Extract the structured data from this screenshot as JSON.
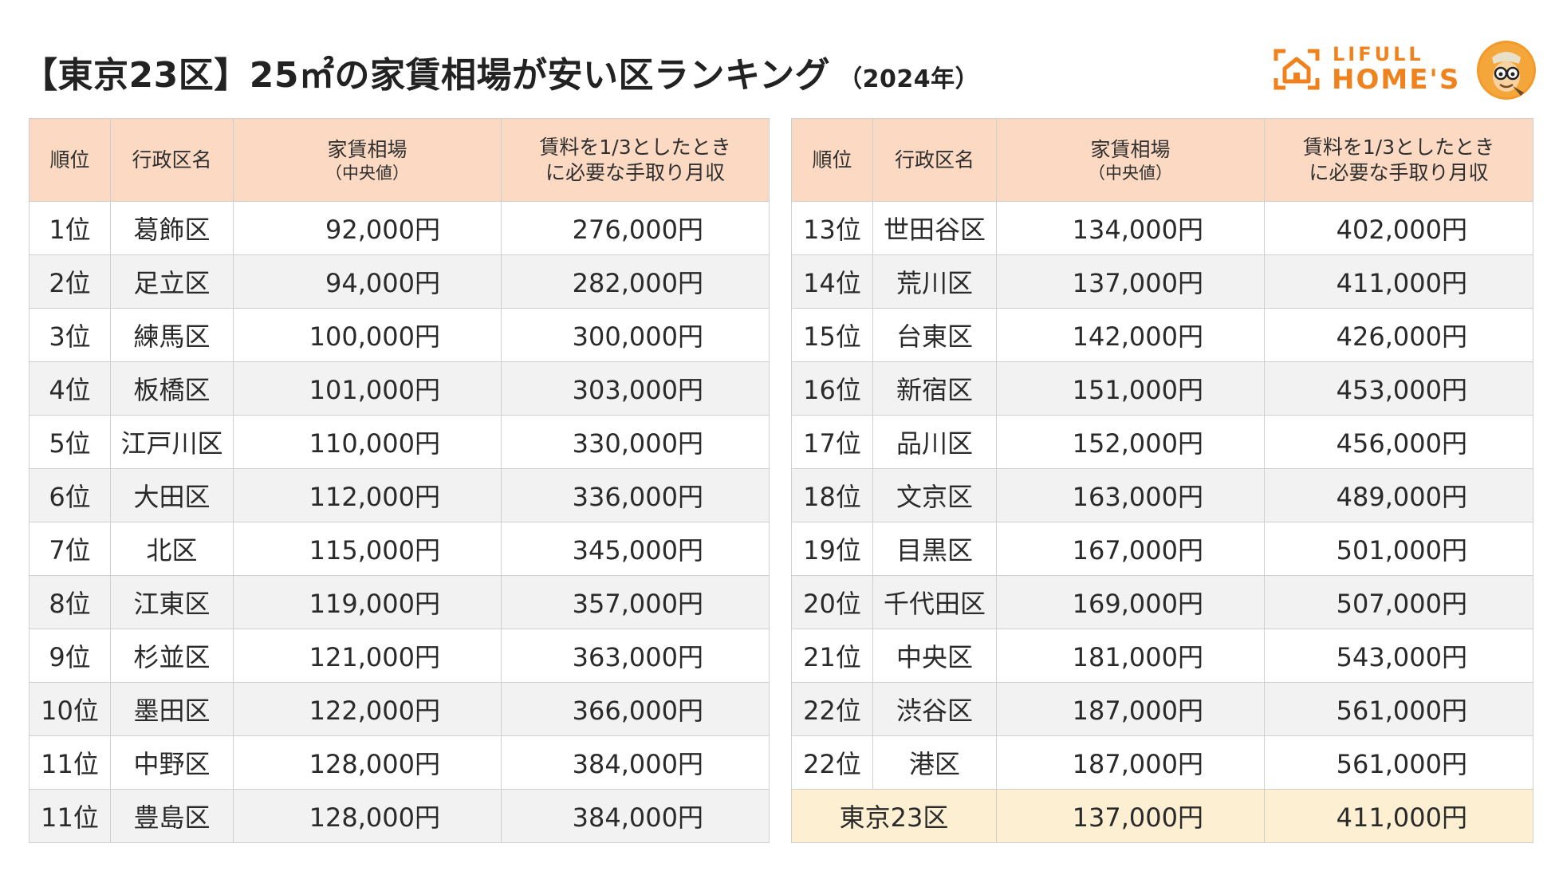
{
  "title": {
    "main": "【東京23区】25㎡の家賃相場が安い区ランキング",
    "year": "（2024年）"
  },
  "logo": {
    "top_text": "LIFULL",
    "main_text": "HOME'S"
  },
  "colors": {
    "header_bg": "#fbd9c2",
    "row_alt_bg": "#f2f2f2",
    "total_row_bg": "#fdf0d2",
    "brand_orange": "#f0821e"
  },
  "headers": {
    "rank": "順位",
    "ward": "行政区名",
    "rent_line1": "家賃相場",
    "rent_line2": "（中央値）",
    "income_line1": "賃料を1/3としたとき",
    "income_line2": "に必要な手取り月収"
  },
  "left_table": [
    {
      "rank": "1位",
      "ward": "葛飾区",
      "rent": "92,000円",
      "income": "276,000円"
    },
    {
      "rank": "2位",
      "ward": "足立区",
      "rent": "94,000円",
      "income": "282,000円"
    },
    {
      "rank": "3位",
      "ward": "練馬区",
      "rent": "100,000円",
      "income": "300,000円"
    },
    {
      "rank": "4位",
      "ward": "板橋区",
      "rent": "101,000円",
      "income": "303,000円"
    },
    {
      "rank": "5位",
      "ward": "江戸川区",
      "rent": "110,000円",
      "income": "330,000円"
    },
    {
      "rank": "6位",
      "ward": "大田区",
      "rent": "112,000円",
      "income": "336,000円"
    },
    {
      "rank": "7位",
      "ward": "北区",
      "rent": "115,000円",
      "income": "345,000円"
    },
    {
      "rank": "8位",
      "ward": "江東区",
      "rent": "119,000円",
      "income": "357,000円"
    },
    {
      "rank": "9位",
      "ward": "杉並区",
      "rent": "121,000円",
      "income": "363,000円"
    },
    {
      "rank": "10位",
      "ward": "墨田区",
      "rent": "122,000円",
      "income": "366,000円"
    },
    {
      "rank": "11位",
      "ward": "中野区",
      "rent": "128,000円",
      "income": "384,000円"
    },
    {
      "rank": "11位",
      "ward": "豊島区",
      "rent": "128,000円",
      "income": "384,000円"
    }
  ],
  "right_table": [
    {
      "rank": "13位",
      "ward": "世田谷区",
      "rent": "134,000円",
      "income": "402,000円"
    },
    {
      "rank": "14位",
      "ward": "荒川区",
      "rent": "137,000円",
      "income": "411,000円"
    },
    {
      "rank": "15位",
      "ward": "台東区",
      "rent": "142,000円",
      "income": "426,000円"
    },
    {
      "rank": "16位",
      "ward": "新宿区",
      "rent": "151,000円",
      "income": "453,000円"
    },
    {
      "rank": "17位",
      "ward": "品川区",
      "rent": "152,000円",
      "income": "456,000円"
    },
    {
      "rank": "18位",
      "ward": "文京区",
      "rent": "163,000円",
      "income": "489,000円"
    },
    {
      "rank": "19位",
      "ward": "目黒区",
      "rent": "167,000円",
      "income": "501,000円"
    },
    {
      "rank": "20位",
      "ward": "千代田区",
      "rent": "169,000円",
      "income": "507,000円"
    },
    {
      "rank": "21位",
      "ward": "中央区",
      "rent": "181,000円",
      "income": "543,000円"
    },
    {
      "rank": "22位",
      "ward": "渋谷区",
      "rent": "187,000円",
      "income": "561,000円"
    },
    {
      "rank": "22位",
      "ward": "港区",
      "rent": "187,000円",
      "income": "561,000円"
    }
  ],
  "total_row": {
    "label": "東京23区",
    "rent": "137,000円",
    "income": "411,000円"
  }
}
